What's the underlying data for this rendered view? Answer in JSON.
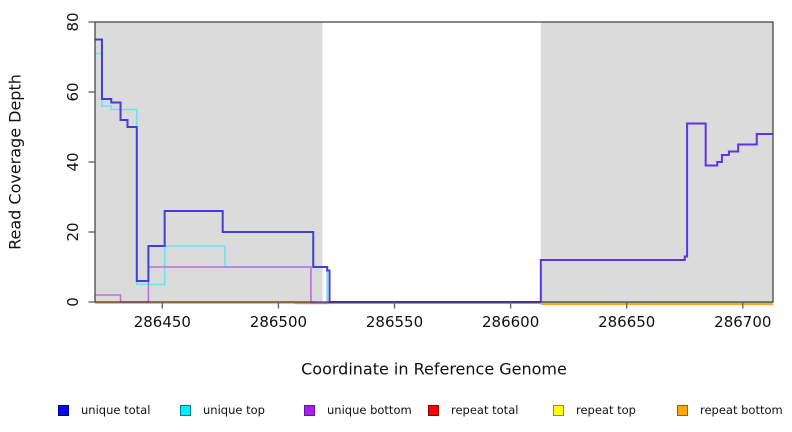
{
  "figure": {
    "kind": "R-style coverage step plot",
    "background": "#ffffff",
    "plot_background_shade": "#DBDBDB",
    "frame_color": "#3b3b3b",
    "tick_color": "#666666"
  },
  "chart_data": {
    "type": "line",
    "subtype": "step-coverage",
    "title": "",
    "xlabel": "Coordinate in Reference Genome",
    "ylabel": "Read Coverage Depth",
    "xlim": [
      286421,
      286713
    ],
    "ylim": [
      0,
      80
    ],
    "grid": false,
    "x_axis": {
      "ticks": [
        286450,
        286500,
        286550,
        286600,
        286650,
        286700
      ]
    },
    "y_axis": {
      "ticks": [
        0,
        20,
        40,
        60,
        80
      ]
    },
    "shaded_regions": [
      {
        "from": 286421,
        "to": 286519
      },
      {
        "from": 286613,
        "to": 286713
      }
    ],
    "series": [
      {
        "name": "unique total",
        "steps": [
          [
            286421,
            75
          ],
          [
            286424,
            58
          ],
          [
            286428,
            57
          ],
          [
            286432,
            52
          ],
          [
            286435,
            50
          ],
          [
            286439,
            6
          ],
          [
            286444,
            16
          ],
          [
            286451,
            26
          ],
          [
            286476,
            20
          ],
          [
            286515,
            10
          ],
          [
            286521,
            9
          ],
          [
            286522,
            0
          ],
          [
            286613,
            12
          ],
          [
            286675,
            13
          ],
          [
            286676,
            51
          ],
          [
            286684,
            39
          ],
          [
            286689,
            40
          ],
          [
            286691,
            42
          ],
          [
            286694,
            43
          ],
          [
            286698,
            45
          ],
          [
            286706,
            48
          ],
          [
            286713,
            48
          ]
        ]
      },
      {
        "name": "unique top",
        "steps": [
          [
            286421,
            71
          ],
          [
            286424,
            56
          ],
          [
            286428,
            55
          ],
          [
            286439,
            5
          ],
          [
            286451,
            16
          ],
          [
            286477,
            10
          ],
          [
            286521,
            0
          ],
          [
            286713,
            0
          ]
        ]
      },
      {
        "name": "unique bottom",
        "steps": [
          [
            286421,
            2
          ],
          [
            286432,
            0
          ],
          [
            286444,
            10
          ],
          [
            286514,
            0
          ],
          [
            286613,
            12
          ],
          [
            286675,
            13
          ],
          [
            286676,
            51
          ],
          [
            286684,
            39
          ],
          [
            286689,
            40
          ],
          [
            286691,
            42
          ],
          [
            286694,
            43
          ],
          [
            286698,
            45
          ],
          [
            286706,
            48
          ],
          [
            286713,
            48
          ]
        ]
      },
      {
        "name": "repeat total",
        "steps": [
          [
            286421,
            0
          ],
          [
            286713,
            0
          ]
        ]
      },
      {
        "name": "repeat top",
        "steps": [
          [
            286421,
            0
          ],
          [
            286713,
            0
          ]
        ]
      },
      {
        "name": "repeat bottom",
        "steps": [
          [
            286421,
            0
          ],
          [
            286713,
            0
          ]
        ]
      }
    ],
    "plot_lines": [
      {
        "role": "zero-overlay-repeat-total-left",
        "color": "#E04545",
        "width": 1.4,
        "dy": 1.4,
        "steps": [
          [
            286507,
            0
          ],
          [
            286522,
            0
          ]
        ]
      },
      {
        "role": "zero-overlay-repeat-bottom-left",
        "color": "#FF9E1E",
        "width": 1.5,
        "dy": 1.0,
        "steps": [
          [
            286421,
            0
          ],
          [
            286519,
            0
          ]
        ]
      },
      {
        "role": "zero-overlay-unique-bottom-gap",
        "color": "#BB6FE0",
        "width": 1.4,
        "dy": 1.2,
        "steps": [
          [
            286514,
            0
          ],
          [
            286613,
            0
          ]
        ]
      },
      {
        "role": "zero-overlay-repeat-bottom-right",
        "color": "#FFA21E",
        "width": 1.5,
        "dy": 2.2,
        "steps": [
          [
            286613,
            0
          ],
          [
            286713,
            0
          ]
        ]
      },
      {
        "role": "zero-overlay-top-plus-yellow-right",
        "color": "#8FCE8F",
        "width": 1.5,
        "dy": 0.8,
        "steps": [
          [
            286613,
            0
          ],
          [
            286713,
            0
          ]
        ]
      },
      {
        "role": "unique-top-line",
        "color": "#67E7EF",
        "width": 1.6,
        "dy": 0,
        "steps": [
          [
            286421,
            71
          ],
          [
            286424,
            56
          ],
          [
            286428,
            55
          ],
          [
            286439,
            5
          ],
          [
            286451,
            16
          ],
          [
            286477,
            10
          ],
          [
            286521,
            0
          ],
          [
            286522,
            0
          ]
        ]
      },
      {
        "role": "unique-bottom-line",
        "color": "#BB6FE0",
        "width": 1.6,
        "dy": 0,
        "steps": [
          [
            286421,
            2
          ],
          [
            286432,
            0
          ],
          [
            286444,
            10
          ],
          [
            286514,
            0
          ],
          [
            286516,
            0
          ]
        ]
      },
      {
        "role": "unique-total-line-left",
        "color": "#3F3FD9",
        "width": 2.0,
        "dy": 0,
        "steps": [
          [
            286421,
            75
          ],
          [
            286424,
            58
          ],
          [
            286428,
            57
          ],
          [
            286432,
            52
          ],
          [
            286435,
            50
          ],
          [
            286439,
            6
          ],
          [
            286444,
            16
          ],
          [
            286451,
            26
          ],
          [
            286476,
            20
          ],
          [
            286515,
            10
          ],
          [
            286521,
            9
          ],
          [
            286522,
            0
          ],
          [
            286613,
            0
          ]
        ]
      },
      {
        "role": "unique-total-plus-bottom-line-right",
        "color": "#5B35E2",
        "width": 2.0,
        "dy": 0,
        "steps": [
          [
            286613,
            0
          ],
          [
            286613,
            12
          ],
          [
            286675,
            13
          ],
          [
            286676,
            51
          ],
          [
            286684,
            39
          ],
          [
            286689,
            40
          ],
          [
            286691,
            42
          ],
          [
            286694,
            43
          ],
          [
            286698,
            45
          ],
          [
            286706,
            48
          ],
          [
            286713,
            48
          ]
        ]
      }
    ]
  },
  "legend": {
    "items": [
      {
        "label": "unique total",
        "fill": "#0A0AF0",
        "border": "#000090"
      },
      {
        "label": "unique top",
        "fill": "#00EEFF",
        "border": "#007A8A"
      },
      {
        "label": "unique bottom",
        "fill": "#A81FE8",
        "border": "#70109E"
      },
      {
        "label": "repeat total",
        "fill": "#F50505",
        "border": "#900000"
      },
      {
        "label": "repeat top",
        "fill": "#FFFF05",
        "border": "#8F8F00"
      },
      {
        "label": "repeat bottom",
        "fill": "#FFA505",
        "border": "#A06000"
      }
    ]
  }
}
